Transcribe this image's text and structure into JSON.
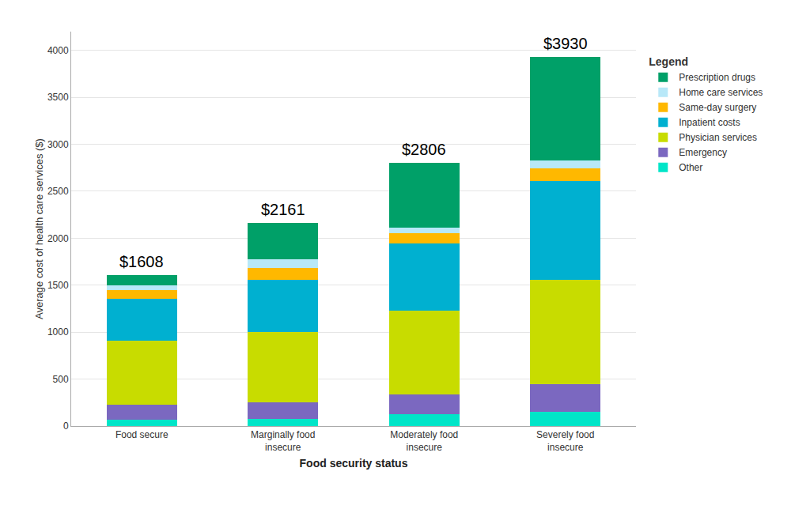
{
  "chart_data": {
    "type": "bar",
    "stacked": true,
    "categories": [
      "Food secure",
      "Marginally food\ninsecure",
      "Moderately food\ninsecure",
      "Severely food\ninsecure"
    ],
    "series": [
      {
        "name": "Other",
        "color": "#00E5C8",
        "values": [
          70,
          75,
          125,
          150
        ]
      },
      {
        "name": "Emergency",
        "color": "#7B68C0",
        "values": [
          155,
          175,
          210,
          300
        ]
      },
      {
        "name": "Physician services",
        "color": "#C8DC00",
        "values": [
          680,
          750,
          890,
          1110
        ]
      },
      {
        "name": "Inpatient costs",
        "color": "#00B0D0",
        "values": [
          450,
          560,
          720,
          1050
        ]
      },
      {
        "name": "Same-day surgery",
        "color": "#FFB800",
        "values": [
          90,
          120,
          110,
          135
        ]
      },
      {
        "name": "Home care services",
        "color": "#B8E8F8",
        "values": [
          55,
          95,
          60,
          85
        ]
      },
      {
        "name": "Prescription drugs",
        "color": "#00A068",
        "values": [
          108,
          386,
          691,
          1100
        ]
      }
    ],
    "annotations": [
      {
        "category": "Food secure",
        "value": 1608,
        "text": "$1608"
      },
      {
        "category": "Marginally food\ninsecure",
        "value": 2161,
        "text": "$2161"
      },
      {
        "category": "Moderately food\ninsecure",
        "value": 2806,
        "text": "$2806"
      },
      {
        "category": "Severely food\ninsecure",
        "value": 3930,
        "text": "$3930"
      }
    ],
    "xlabel": "Food security status",
    "ylabel": "Average cost of health care services ($)",
    "ylim": [
      0,
      4200
    ],
    "yticks": [
      0,
      500,
      1000,
      1500,
      2000,
      2500,
      3000,
      3500,
      4000
    ],
    "grid": true,
    "legend": "right",
    "legend_title": "Legend"
  }
}
